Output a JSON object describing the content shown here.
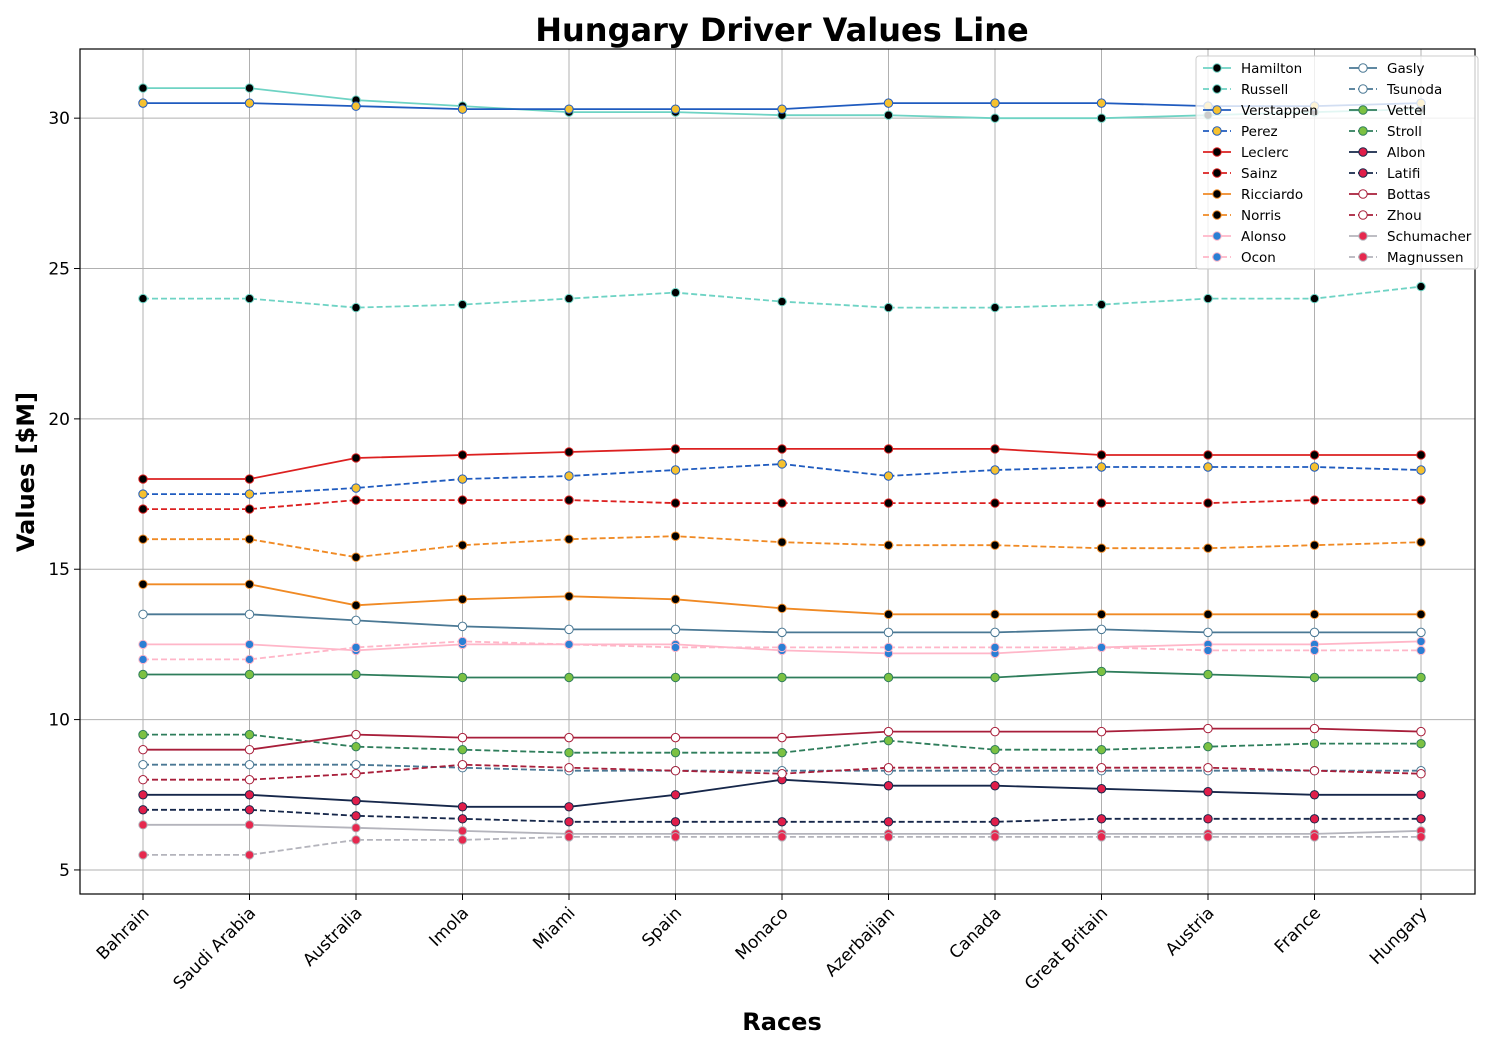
{
  "chart_data": {
    "type": "line",
    "title": "Hungary Driver Values Line",
    "xlabel": "Races",
    "ylabel": "Values [$M]",
    "ylim": [
      4.2,
      32.3
    ],
    "yticks": [
      5,
      10,
      15,
      20,
      25,
      30
    ],
    "grid": true,
    "legend_position": "top-right",
    "legend_columns": 2,
    "categories": [
      "Bahrain",
      "Saudi Arabia",
      "Australia",
      "Imola",
      "Miami",
      "Spain",
      "Monaco",
      "Azerbaijan",
      "Canada",
      "Great Britain",
      "Austria",
      "France",
      "Hungary"
    ],
    "series": [
      {
        "name": "Hamilton",
        "color": "#6ed3c4",
        "dash": false,
        "marker_fill": "#000000",
        "marker_edge": "#6ed3c4",
        "values": [
          31.0,
          31.0,
          30.6,
          30.4,
          30.2,
          30.2,
          30.1,
          30.1,
          30.0,
          30.0,
          30.1,
          30.2,
          30.3
        ]
      },
      {
        "name": "Russell",
        "color": "#6ed3c4",
        "dash": true,
        "marker_fill": "#000000",
        "marker_edge": "#6ed3c4",
        "values": [
          24.0,
          24.0,
          23.7,
          23.8,
          24.0,
          24.2,
          23.9,
          23.7,
          23.7,
          23.8,
          24.0,
          24.0,
          24.4
        ]
      },
      {
        "name": "Verstappen",
        "color": "#1f5bbf",
        "dash": false,
        "marker_fill": "#f6c12f",
        "marker_edge": "#1f5bbf",
        "values": [
          30.5,
          30.5,
          30.4,
          30.3,
          30.3,
          30.3,
          30.3,
          30.5,
          30.5,
          30.5,
          30.4,
          30.4,
          30.5
        ]
      },
      {
        "name": "Perez",
        "color": "#1f5bbf",
        "dash": true,
        "marker_fill": "#f6c12f",
        "marker_edge": "#1f5bbf",
        "values": [
          17.5,
          17.5,
          17.7,
          18.0,
          18.1,
          18.3,
          18.5,
          18.1,
          18.3,
          18.4,
          18.4,
          18.4,
          18.3
        ]
      },
      {
        "name": "Leclerc",
        "color": "#dc2020",
        "dash": false,
        "marker_fill": "#000000",
        "marker_edge": "#dc2020",
        "values": [
          18.0,
          18.0,
          18.7,
          18.8,
          18.9,
          19.0,
          19.0,
          19.0,
          19.0,
          18.8,
          18.8,
          18.8,
          18.8
        ]
      },
      {
        "name": "Sainz",
        "color": "#dc2020",
        "dash": true,
        "marker_fill": "#000000",
        "marker_edge": "#dc2020",
        "values": [
          17.0,
          17.0,
          17.3,
          17.3,
          17.3,
          17.2,
          17.2,
          17.2,
          17.2,
          17.2,
          17.2,
          17.3,
          17.3
        ]
      },
      {
        "name": "Ricciardo",
        "color": "#f08a24",
        "dash": false,
        "marker_fill": "#000000",
        "marker_edge": "#f08a24",
        "values": [
          14.5,
          14.5,
          13.8,
          14.0,
          14.1,
          14.0,
          13.7,
          13.5,
          13.5,
          13.5,
          13.5,
          13.5,
          13.5
        ]
      },
      {
        "name": "Norris",
        "color": "#f08a24",
        "dash": true,
        "marker_fill": "#000000",
        "marker_edge": "#f08a24",
        "values": [
          16.0,
          16.0,
          15.4,
          15.8,
          16.0,
          16.1,
          15.9,
          15.8,
          15.8,
          15.7,
          15.7,
          15.8,
          15.9
        ]
      },
      {
        "name": "Alonso",
        "color": "#ffb6c8",
        "dash": false,
        "marker_fill": "#2b7fd4",
        "marker_edge": "#ffb6c8",
        "values": [
          12.5,
          12.5,
          12.3,
          12.5,
          12.5,
          12.5,
          12.3,
          12.2,
          12.2,
          12.4,
          12.5,
          12.5,
          12.6
        ]
      },
      {
        "name": "Ocon",
        "color": "#ffb6c8",
        "dash": true,
        "marker_fill": "#2b7fd4",
        "marker_edge": "#ffb6c8",
        "values": [
          12.0,
          12.0,
          12.4,
          12.6,
          12.5,
          12.4,
          12.4,
          12.4,
          12.4,
          12.4,
          12.3,
          12.3,
          12.3
        ]
      },
      {
        "name": "Gasly",
        "color": "#4a7894",
        "dash": false,
        "marker_fill": "#ffffff",
        "marker_edge": "#4a7894",
        "values": [
          13.5,
          13.5,
          13.3,
          13.1,
          13.0,
          13.0,
          12.9,
          12.9,
          12.9,
          13.0,
          12.9,
          12.9,
          12.9
        ]
      },
      {
        "name": "Tsunoda",
        "color": "#4a7894",
        "dash": true,
        "marker_fill": "#ffffff",
        "marker_edge": "#4a7894",
        "values": [
          8.5,
          8.5,
          8.5,
          8.4,
          8.3,
          8.3,
          8.3,
          8.3,
          8.3,
          8.3,
          8.3,
          8.3,
          8.3
        ]
      },
      {
        "name": "Vettel",
        "color": "#2e7d5b",
        "dash": false,
        "marker_fill": "#7cc142",
        "marker_edge": "#2e7d5b",
        "values": [
          11.5,
          11.5,
          11.5,
          11.4,
          11.4,
          11.4,
          11.4,
          11.4,
          11.4,
          11.6,
          11.5,
          11.4,
          11.4
        ]
      },
      {
        "name": "Stroll",
        "color": "#2e7d5b",
        "dash": true,
        "marker_fill": "#7cc142",
        "marker_edge": "#2e7d5b",
        "values": [
          9.5,
          9.5,
          9.1,
          9.0,
          8.9,
          8.9,
          8.9,
          9.3,
          9.0,
          9.0,
          9.1,
          9.2,
          9.2
        ]
      },
      {
        "name": "Albon",
        "color": "#16274a",
        "dash": false,
        "marker_fill": "#e01e4a",
        "marker_edge": "#16274a",
        "values": [
          7.5,
          7.5,
          7.3,
          7.1,
          7.1,
          7.5,
          8.0,
          7.8,
          7.8,
          7.7,
          7.6,
          7.5,
          7.5
        ]
      },
      {
        "name": "Latifi",
        "color": "#16274a",
        "dash": true,
        "marker_fill": "#e01e4a",
        "marker_edge": "#16274a",
        "values": [
          7.0,
          7.0,
          6.8,
          6.7,
          6.6,
          6.6,
          6.6,
          6.6,
          6.6,
          6.7,
          6.7,
          6.7,
          6.7
        ]
      },
      {
        "name": "Bottas",
        "color": "#a81e3a",
        "dash": false,
        "marker_fill": "#ffffff",
        "marker_edge": "#a81e3a",
        "values": [
          9.0,
          9.0,
          9.5,
          9.4,
          9.4,
          9.4,
          9.4,
          9.6,
          9.6,
          9.6,
          9.7,
          9.7,
          9.6
        ]
      },
      {
        "name": "Zhou",
        "color": "#a81e3a",
        "dash": true,
        "marker_fill": "#ffffff",
        "marker_edge": "#a81e3a",
        "values": [
          8.0,
          8.0,
          8.2,
          8.5,
          8.4,
          8.3,
          8.2,
          8.4,
          8.4,
          8.4,
          8.4,
          8.3,
          8.2
        ]
      },
      {
        "name": "Schumacher",
        "color": "#b4b4bc",
        "dash": false,
        "marker_fill": "#e6284e",
        "marker_edge": "#b4b4bc",
        "values": [
          6.5,
          6.5,
          6.4,
          6.3,
          6.2,
          6.2,
          6.2,
          6.2,
          6.2,
          6.2,
          6.2,
          6.2,
          6.3
        ]
      },
      {
        "name": "Magnussen",
        "color": "#b4b4bc",
        "dash": true,
        "marker_fill": "#e6284e",
        "marker_edge": "#b4b4bc",
        "values": [
          5.5,
          5.5,
          6.0,
          6.0,
          6.1,
          6.1,
          6.1,
          6.1,
          6.1,
          6.1,
          6.1,
          6.1,
          6.1
        ]
      }
    ]
  }
}
